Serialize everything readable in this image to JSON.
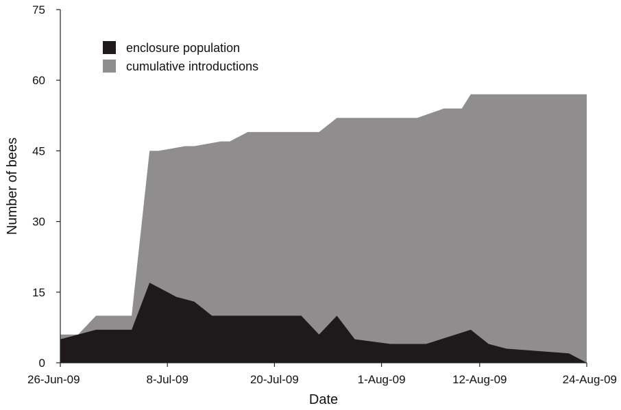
{
  "chart_data": {
    "type": "area",
    "xlabel": "Date",
    "ylabel": "Number of bees",
    "ylim": [
      0,
      75
    ],
    "y_ticks": [
      "0",
      "15",
      "30",
      "45",
      "60",
      "75"
    ],
    "x_ticks": [
      "26-Jun-09",
      "8-Jul-09",
      "20-Jul-09",
      "1-Aug-09",
      "12-Aug-09",
      "24-Aug-09"
    ],
    "x_tick_dates": [
      "2009-06-26",
      "2009-07-08",
      "2009-07-20",
      "2009-08-01",
      "2009-08-12",
      "2009-08-24"
    ],
    "x_range": [
      "2009-06-26",
      "2009-08-24"
    ],
    "legend_position": "top-left",
    "stacking": "overlaid",
    "series": [
      {
        "name": "cumulative introductions",
        "color": "#8f8d8e",
        "points": [
          {
            "x": "2009-06-26",
            "y": 6
          },
          {
            "x": "2009-06-28",
            "y": 6
          },
          {
            "x": "2009-06-30",
            "y": 10
          },
          {
            "x": "2009-07-01",
            "y": 10
          },
          {
            "x": "2009-07-04",
            "y": 10
          },
          {
            "x": "2009-07-06",
            "y": 45
          },
          {
            "x": "2009-07-07",
            "y": 45
          },
          {
            "x": "2009-07-10",
            "y": 46
          },
          {
            "x": "2009-07-11",
            "y": 46
          },
          {
            "x": "2009-07-14",
            "y": 47
          },
          {
            "x": "2009-07-15",
            "y": 47
          },
          {
            "x": "2009-07-17",
            "y": 49
          },
          {
            "x": "2009-07-24",
            "y": 49
          },
          {
            "x": "2009-07-25",
            "y": 49
          },
          {
            "x": "2009-07-27",
            "y": 52
          },
          {
            "x": "2009-08-03",
            "y": 52
          },
          {
            "x": "2009-08-05",
            "y": 52
          },
          {
            "x": "2009-08-08",
            "y": 54
          },
          {
            "x": "2009-08-10",
            "y": 54
          },
          {
            "x": "2009-08-11",
            "y": 57
          },
          {
            "x": "2009-08-24",
            "y": 57
          }
        ]
      },
      {
        "name": "enclosure population",
        "color": "#1e1a1b",
        "points": [
          {
            "x": "2009-06-26",
            "y": 5
          },
          {
            "x": "2009-06-28",
            "y": 6
          },
          {
            "x": "2009-06-30",
            "y": 7
          },
          {
            "x": "2009-07-01",
            "y": 7
          },
          {
            "x": "2009-07-04",
            "y": 7
          },
          {
            "x": "2009-07-06",
            "y": 17
          },
          {
            "x": "2009-07-07",
            "y": 16
          },
          {
            "x": "2009-07-09",
            "y": 14
          },
          {
            "x": "2009-07-11",
            "y": 13
          },
          {
            "x": "2009-07-13",
            "y": 10
          },
          {
            "x": "2009-07-15",
            "y": 10
          },
          {
            "x": "2009-07-23",
            "y": 10
          },
          {
            "x": "2009-07-25",
            "y": 6
          },
          {
            "x": "2009-07-27",
            "y": 10
          },
          {
            "x": "2009-07-29",
            "y": 5
          },
          {
            "x": "2009-08-02",
            "y": 4
          },
          {
            "x": "2009-08-06",
            "y": 4
          },
          {
            "x": "2009-08-11",
            "y": 7
          },
          {
            "x": "2009-08-13",
            "y": 4
          },
          {
            "x": "2009-08-15",
            "y": 3
          },
          {
            "x": "2009-08-22",
            "y": 2
          },
          {
            "x": "2009-08-24",
            "y": 0
          }
        ]
      }
    ]
  }
}
